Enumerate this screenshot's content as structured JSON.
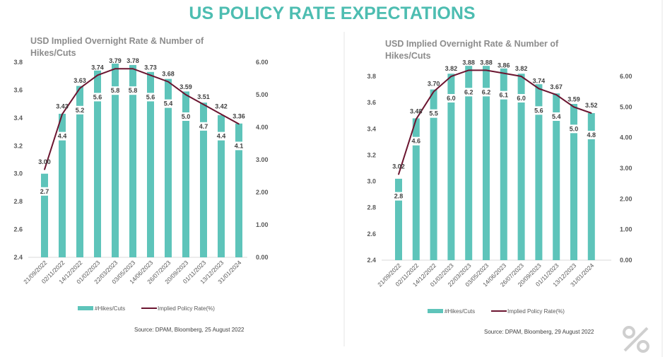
{
  "page_title": "US POLICY RATE EXPECTATIONS",
  "colors": {
    "title": "#4dbdb1",
    "bars": "#5ec4ba",
    "line": "#6b1530",
    "text": "#595959"
  },
  "logo": {
    "icon": "percent-logo-icon"
  },
  "chart_data": [
    {
      "type": "bar+line",
      "title": "USD Implied Overnight Rate & Number of Hikes/Cuts",
      "title_lines": [
        "USD Implied Overnight Rate & Number of",
        "Hikes/Cuts"
      ],
      "categories": [
        "21/09/2022",
        "02/11/2022",
        "14/12/2022",
        "01/02/2023",
        "22/03/2023",
        "03/05/2023",
        "14/06/2023",
        "26/07/2023",
        "20/09/2023",
        "01/11/2023",
        "13/12/2023",
        "31/01/2024"
      ],
      "series": [
        {
          "name": "#Hikes/Cuts",
          "type": "bar",
          "axis": "left",
          "values": [
            3.0,
            3.43,
            3.63,
            3.74,
            3.79,
            3.78,
            3.73,
            3.68,
            3.59,
            3.51,
            3.42,
            3.36
          ],
          "data_labels": [
            2.7,
            4.4,
            5.2,
            5.6,
            5.8,
            5.8,
            5.6,
            5.4,
            5.0,
            4.7,
            4.4,
            4.1
          ]
        },
        {
          "name": "Implied Policy Rate(%)",
          "type": "line",
          "axis": "right",
          "values": [
            2.7,
            4.4,
            5.2,
            5.6,
            5.8,
            5.8,
            5.6,
            5.4,
            5.0,
            4.7,
            4.4,
            4.1
          ],
          "data_labels": [
            "3.00",
            "3.43",
            "3.63",
            "3.74",
            "3.79",
            "3.78",
            "3.73",
            "3.68",
            "3.59",
            "3.51",
            "3.42",
            "3.36"
          ]
        }
      ],
      "y_left": {
        "ylim": [
          2.4,
          3.8
        ],
        "ticks": [
          "2.4",
          "2.6",
          "2.8",
          "3.0",
          "3.2",
          "3.4",
          "3.6",
          "3.8"
        ]
      },
      "y_right": {
        "ylim": [
          0,
          6
        ],
        "ticks": [
          "0.00",
          "1.00",
          "2.00",
          "3.00",
          "4.00",
          "5.00",
          "6.00"
        ]
      },
      "grid": false,
      "legend": "bottom",
      "source": "Source: DPAM, Bloomberg, 25 August 2022"
    },
    {
      "type": "bar+line",
      "title": "USD Implied Overnight Rate & Number of Hikes/Cuts",
      "title_lines": [
        "USD Implied Overnight Rate & Number of",
        "Hikes/Cuts"
      ],
      "categories": [
        "21/09/2022",
        "02/11/2022",
        "14/12/2022",
        "01/02/2023",
        "22/03/2023",
        "03/05/2023",
        "14/06/2023",
        "26/07/2023",
        "20/09/2023",
        "01/11/2023",
        "13/12/2023",
        "31/01/2024"
      ],
      "series": [
        {
          "name": "#Hikes/Cuts",
          "type": "bar",
          "axis": "left",
          "values": [
            3.02,
            3.48,
            3.7,
            3.82,
            3.88,
            3.88,
            3.86,
            3.82,
            3.74,
            3.67,
            3.59,
            3.52
          ],
          "data_labels": [
            2.8,
            4.6,
            5.5,
            6.0,
            6.2,
            6.2,
            6.1,
            6.0,
            5.6,
            5.4,
            5.0,
            4.8
          ]
        },
        {
          "name": "Implied Policy Rate(%)",
          "type": "line",
          "axis": "right",
          "values": [
            2.8,
            4.6,
            5.5,
            6.0,
            6.2,
            6.2,
            6.1,
            6.0,
            5.6,
            5.4,
            5.0,
            4.8
          ],
          "data_labels": [
            "3.02",
            "3.48",
            "3.70",
            "3.82",
            "3.88",
            "3.88",
            "3.86",
            "3.82",
            "3.74",
            "3.67",
            "3.59",
            "3.52"
          ]
        }
      ],
      "y_left": {
        "ylim": [
          2.4,
          3.8
        ],
        "ticks": [
          "2.4",
          "2.6",
          "2.8",
          "3.0",
          "3.2",
          "3.4",
          "3.6",
          "3.8"
        ]
      },
      "y_right": {
        "ylim": [
          0,
          6
        ],
        "ticks": [
          "0.00",
          "1.00",
          "2.00",
          "3.00",
          "4.00",
          "5.00",
          "6.00"
        ]
      },
      "grid": false,
      "legend": "bottom",
      "source": "Source: DPAM, Bloomberg, 29 August 2022"
    }
  ]
}
